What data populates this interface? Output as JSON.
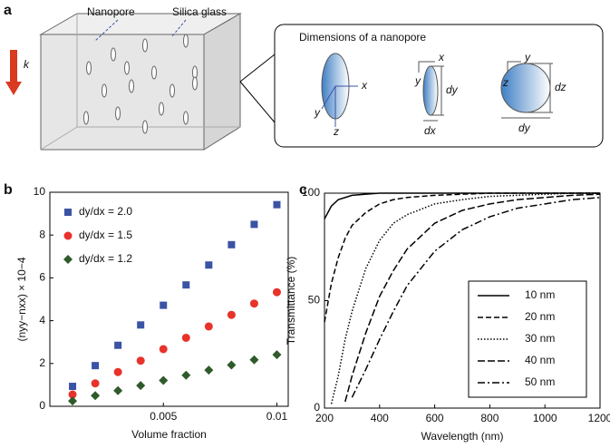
{
  "panel_labels": [
    "a",
    "b",
    "c"
  ],
  "diagram": {
    "nanopore_label": "Nanopore",
    "silica_label": "Silica glass",
    "wave_label": "k",
    "inset_title": "Dimensions of a nanopore",
    "axes": [
      "x",
      "y",
      "z",
      "x",
      "y",
      "y",
      "z"
    ],
    "dims": [
      "dy",
      "dx",
      "dz",
      "dy"
    ]
  },
  "chart_data": [
    {
      "type": "scatter",
      "x_label": "Volume fraction",
      "y_label": "(nyy−nxx) × 10−4",
      "x": [
        0.001,
        0.002,
        0.003,
        0.004,
        0.005,
        0.006,
        0.007,
        0.008,
        0.009,
        0.01
      ],
      "series": [
        {
          "name": "dy/dx = 2.0",
          "color": "#3a53a4",
          "marker": "square",
          "values": [
            0.93,
            1.9,
            2.85,
            3.8,
            4.72,
            5.67,
            6.6,
            7.55,
            8.5,
            9.42
          ]
        },
        {
          "name": "dy/dx = 1.5",
          "color": "#e8322b",
          "marker": "circle",
          "values": [
            0.55,
            1.07,
            1.6,
            2.13,
            2.67,
            3.2,
            3.73,
            4.27,
            4.8,
            5.33
          ]
        },
        {
          "name": "dy/dx = 1.2",
          "color": "#2f5a2a",
          "marker": "diamond",
          "values": [
            0.25,
            0.5,
            0.73,
            0.97,
            1.21,
            1.45,
            1.69,
            1.93,
            2.17,
            2.41
          ]
        }
      ],
      "xlim": [
        0,
        0.0105
      ],
      "xticks": [
        0.005,
        0.01
      ],
      "ylim": [
        0,
        10
      ],
      "yticks": [
        0,
        2,
        4,
        6,
        8,
        10
      ],
      "legend": "upper left"
    },
    {
      "type": "line",
      "x_label": "Wavelength (nm)",
      "y_label": "Transmittance (%)",
      "x": [
        200,
        225,
        250,
        275,
        300,
        350,
        400,
        450,
        500,
        600,
        700,
        800,
        900,
        1000,
        1100,
        1200
      ],
      "series": [
        {
          "name": "10 nm",
          "color": "#000000",
          "dash": "none",
          "values": [
            88,
            94,
            97,
            98,
            99,
            99.5,
            100,
            100,
            100,
            100,
            100,
            100,
            100,
            100,
            100,
            100
          ]
        },
        {
          "name": "20 nm",
          "color": "#000000",
          "dash": "6,3",
          "values": [
            40,
            58,
            70,
            79,
            85,
            91,
            95,
            97,
            98,
            99,
            99.5,
            100,
            100,
            100,
            100,
            100
          ]
        },
        {
          "name": "30 nm",
          "color": "#000000",
          "dash": "1.5,2",
          "values": [
            null,
            2,
            15,
            32,
            45,
            65,
            78,
            86,
            90,
            95,
            97,
            98.5,
            99,
            99.5,
            100,
            100
          ]
        },
        {
          "name": "40 nm",
          "color": "#000000",
          "dash": "8,3",
          "values": [
            null,
            null,
            null,
            3,
            15,
            35,
            52,
            64,
            74,
            86,
            92,
            95,
            97,
            98,
            99,
            99.5
          ]
        },
        {
          "name": "50 nm",
          "color": "#000000",
          "dash": "8,3,2,3",
          "values": [
            null,
            null,
            null,
            null,
            5,
            18,
            32,
            45,
            57,
            73,
            83,
            89,
            93,
            95,
            97,
            98
          ]
        }
      ],
      "xlim": [
        200,
        1200
      ],
      "xticks": [
        200,
        400,
        600,
        800,
        1000,
        1200
      ],
      "ylim": [
        0,
        100
      ],
      "yticks": [
        0,
        50,
        100
      ],
      "legend": "lower right"
    }
  ]
}
